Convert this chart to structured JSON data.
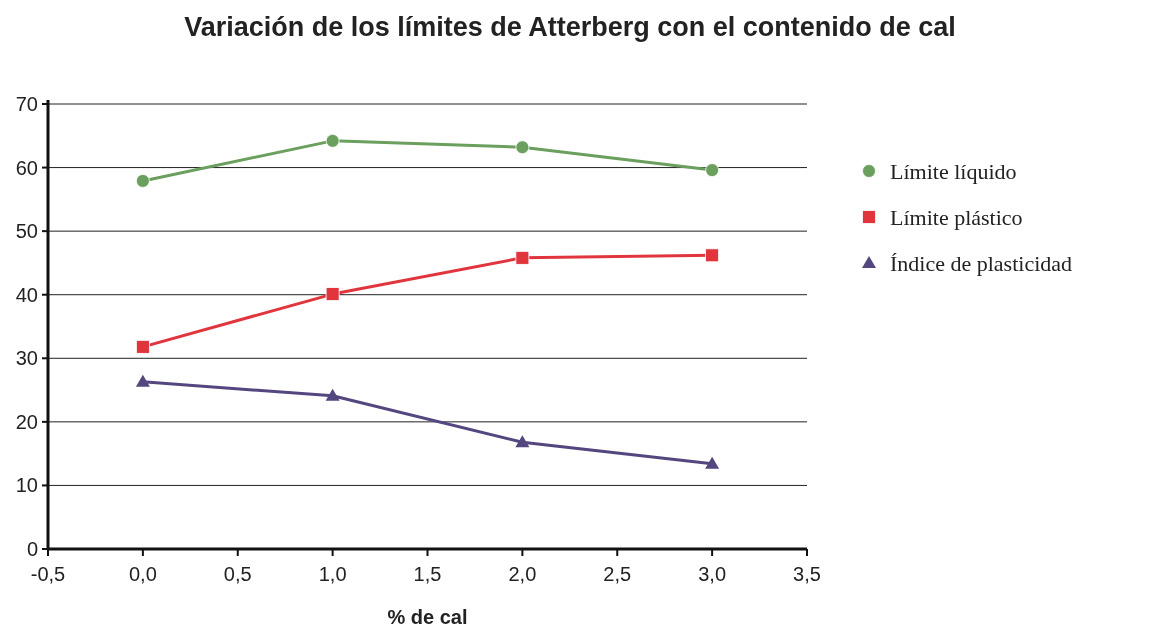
{
  "chart_data": {
    "type": "line",
    "title": "Variación de los límites de Atterberg con el contenido de cal",
    "xlabel": "% de cal",
    "x": [
      0,
      1,
      2,
      3
    ],
    "series": [
      {
        "name": "Límite líquido",
        "color": "#6a9f5e",
        "marker": "circle",
        "values": [
          57.9,
          64.2,
          63.2,
          59.6
        ]
      },
      {
        "name": "Límite plástico",
        "color": "#e0353d",
        "marker": "square",
        "values": [
          31.8,
          40.1,
          45.8,
          46.2
        ]
      },
      {
        "name": "Índice de plasticidad",
        "color": "#54467f",
        "marker": "triangle",
        "values": [
          26.3,
          24.1,
          16.8,
          13.4
        ]
      }
    ],
    "xlim": [
      -0.5,
      3.5
    ],
    "xticks": [
      {
        "value": -0.5,
        "label": "-0,5"
      },
      {
        "value": 0,
        "label": "0,0"
      },
      {
        "value": 0.5,
        "label": "0,5"
      },
      {
        "value": 1,
        "label": "1,0"
      },
      {
        "value": 1.5,
        "label": "1,5"
      },
      {
        "value": 2,
        "label": "2,0"
      },
      {
        "value": 2.5,
        "label": "2,5"
      },
      {
        "value": 3,
        "label": "3,0"
      },
      {
        "value": 3.5,
        "label": "3,5"
      }
    ],
    "ylim": [
      0,
      70
    ],
    "yticks": [
      0,
      10,
      20,
      30,
      40,
      50,
      60,
      70
    ],
    "grid": "y",
    "legend": "right",
    "line_style": "solid"
  }
}
